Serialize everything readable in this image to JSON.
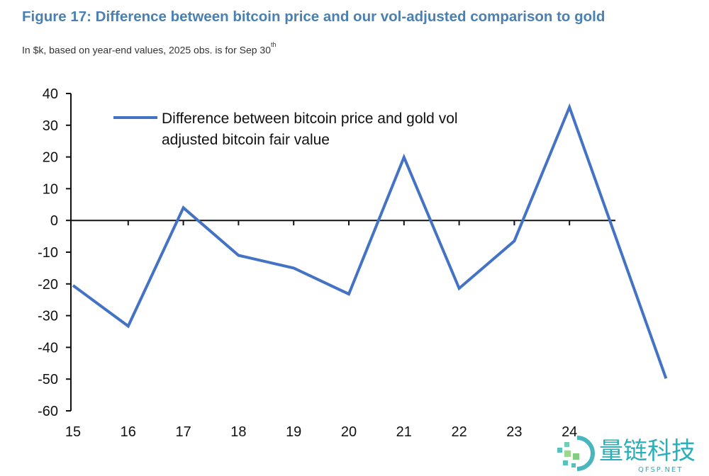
{
  "chart_data": {
    "type": "line",
    "title": "Figure 17: Difference between bitcoin price and our vol-adjusted comparison to gold",
    "subtitle": "In $k, based on year-end values, 2025 obs. is for Sep 30",
    "subtitle_sup": "th",
    "xlabel": "",
    "ylabel": "",
    "x_tick_labels": [
      "15",
      "16",
      "17",
      "18",
      "19",
      "20",
      "21",
      "22",
      "23",
      "24"
    ],
    "y_tick_labels": [
      "40",
      "30",
      "20",
      "10",
      "0",
      "-10",
      "-20",
      "-30",
      "-40",
      "-50",
      "-60"
    ],
    "ylim": [
      -60,
      40
    ],
    "grid": false,
    "legend_position": "top-left",
    "series": [
      {
        "name": "Difference between bitcoin price and gold vol adjusted bitcoin fair value",
        "legend_lines": [
          "Difference between bitcoin price and gold vol",
          "adjusted bitcoin fair value"
        ],
        "color": "#4472c4",
        "x": [
          2015,
          2016,
          2017,
          2018,
          2019,
          2020,
          2021,
          2022,
          2023,
          2024,
          2025.75
        ],
        "values": [
          -20.5,
          -33.3,
          4.0,
          -11.0,
          -15.0,
          -23.2,
          19.9,
          -21.4,
          -6.5,
          35.7,
          -49.8
        ]
      }
    ]
  },
  "watermark": {
    "text": "量链科技",
    "sub": "QFSP.NET"
  }
}
